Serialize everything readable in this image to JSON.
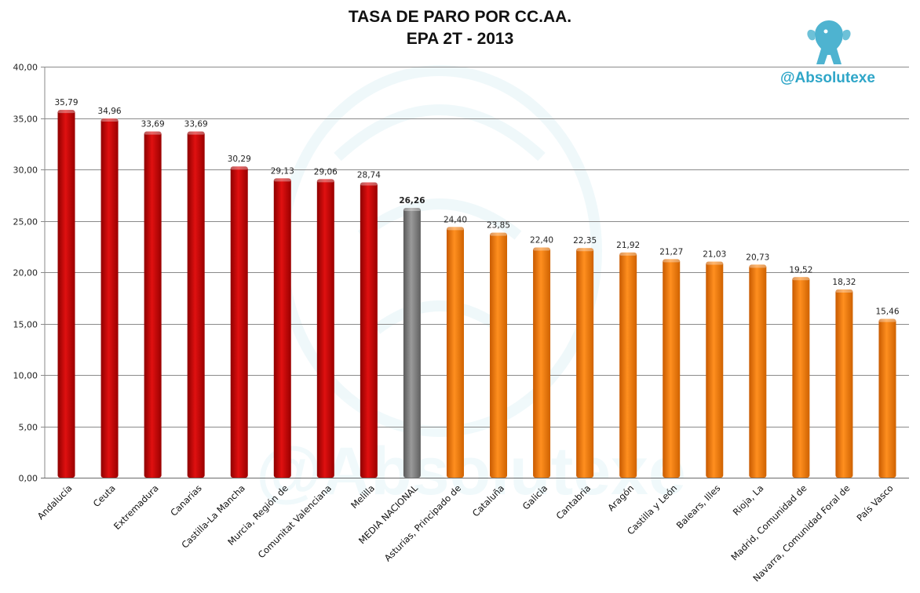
{
  "title": "TASA DE PARO POR CC.AA.",
  "subtitle": "EPA 2T - 2013",
  "brand": "@Absolutexe",
  "watermark_text": "@Absolutexe",
  "colors": {
    "red": "#c00000",
    "gray": "#808080",
    "orange": "#f07b0e",
    "grid": "#8a8a8a",
    "brand": "#2fa6c8"
  },
  "chart_data": {
    "type": "bar",
    "categories": [
      "Andalucía",
      "Ceuta",
      "Extremadura",
      "Canarias",
      "Castilla-La Mancha",
      "Murcia, Región de",
      "Comunitat Valenciana",
      "Melilla",
      "MEDIA NACIONAL",
      "Asturias, Principado de",
      "Cataluña",
      "Galicia",
      "Cantabria",
      "Aragón",
      "Castilla y León",
      "Balears, Illes",
      "Rioja, La",
      "Madrid, Comunidad de",
      "Navarra, Comunidad Foral de",
      "País Vasco"
    ],
    "values": [
      35.79,
      34.96,
      33.69,
      33.69,
      30.29,
      29.13,
      29.06,
      28.74,
      26.26,
      24.4,
      23.85,
      22.4,
      22.35,
      21.92,
      21.27,
      21.03,
      20.73,
      19.52,
      18.32,
      15.46
    ],
    "value_labels": [
      "35,79",
      "34,96",
      "33,69",
      "33,69",
      "30,29",
      "29,13",
      "29,06",
      "28,74",
      "26,26",
      "24,40",
      "23,85",
      "22,40",
      "22,35",
      "21,92",
      "21,27",
      "21,03",
      "20,73",
      "19,52",
      "18,32",
      "15,46"
    ],
    "bar_colors": [
      "red",
      "red",
      "red",
      "red",
      "red",
      "red",
      "red",
      "red",
      "gray",
      "orange",
      "orange",
      "orange",
      "orange",
      "orange",
      "orange",
      "orange",
      "orange",
      "orange",
      "orange",
      "orange"
    ],
    "ylim": [
      0,
      40
    ],
    "yticks": [
      0,
      5,
      10,
      15,
      20,
      25,
      30,
      35,
      40
    ],
    "ytick_labels": [
      "0,00",
      "5,00",
      "10,00",
      "15,00",
      "20,00",
      "25,00",
      "30,00",
      "35,00",
      "40,00"
    ],
    "grid": true,
    "legend": "none"
  }
}
